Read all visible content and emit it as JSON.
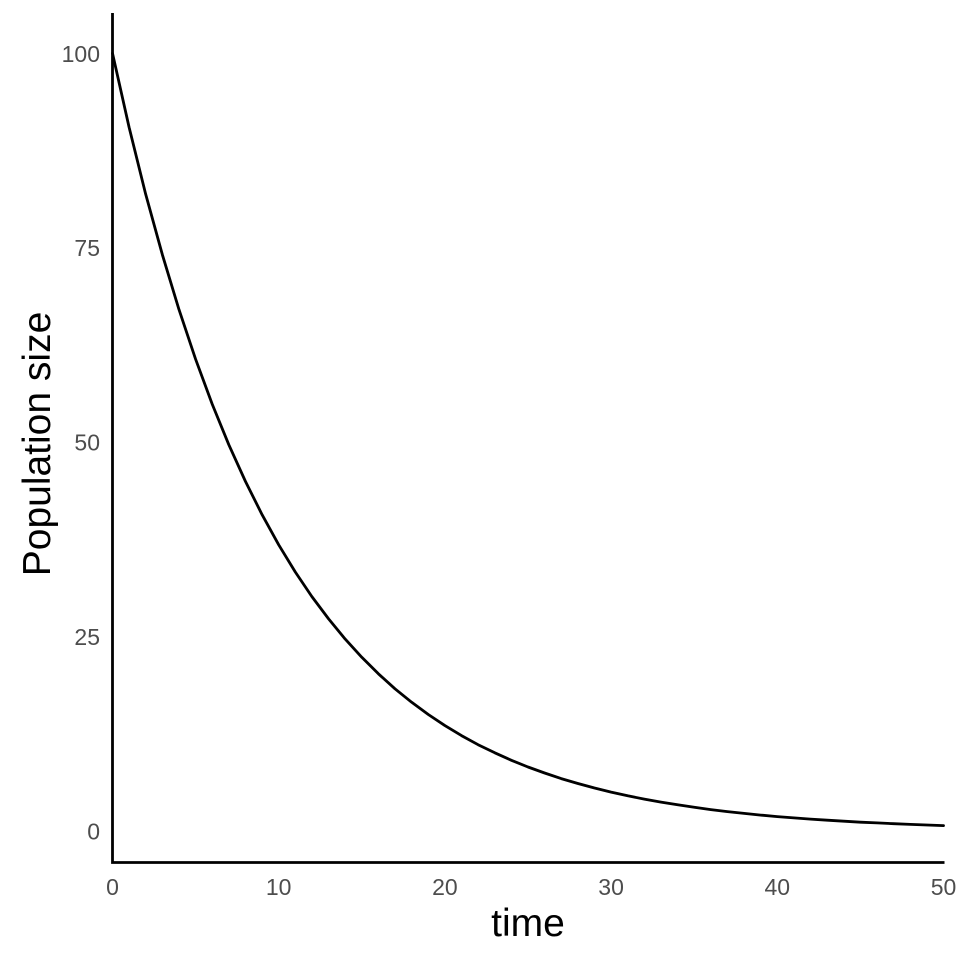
{
  "chart_data": {
    "type": "line",
    "title": "",
    "xlabel": "time",
    "ylabel": "Population size",
    "xlim": [
      0,
      50
    ],
    "ylim": [
      0,
      100
    ],
    "x_ticks": [
      0,
      10,
      20,
      30,
      40,
      50
    ],
    "y_ticks": [
      0,
      25,
      50,
      75,
      100
    ],
    "grid": "off",
    "legend": "none",
    "colors": {
      "curve": "#000000",
      "axis": "#000000",
      "tick_label": "#4D4D4D",
      "axis_title": "#000000",
      "background": "#FFFFFF"
    },
    "series": [
      {
        "name": "population-size",
        "x": [
          0,
          1,
          2,
          3,
          4,
          5,
          6,
          7,
          8,
          9,
          10,
          11,
          12,
          13,
          14,
          15,
          16,
          17,
          18,
          19,
          20,
          21,
          22,
          23,
          24,
          25,
          26,
          27,
          28,
          29,
          30,
          31,
          32,
          33,
          34,
          35,
          36,
          37,
          38,
          39,
          40,
          41,
          42,
          43,
          44,
          45,
          46,
          47,
          48,
          49,
          50
        ],
        "y": [
          100,
          90.48,
          81.87,
          74.08,
          67.03,
          60.65,
          54.88,
          49.66,
          44.93,
          40.66,
          36.79,
          33.29,
          30.12,
          27.25,
          24.66,
          22.31,
          20.19,
          18.27,
          16.53,
          14.96,
          13.53,
          12.25,
          11.08,
          10.03,
          9.07,
          8.21,
          7.43,
          6.72,
          6.08,
          5.5,
          4.98,
          4.5,
          4.08,
          3.69,
          3.34,
          3.02,
          2.73,
          2.47,
          2.24,
          2.02,
          1.83,
          1.66,
          1.5,
          1.36,
          1.23,
          1.11,
          1.01,
          0.91,
          0.82,
          0.74,
          0.67
        ]
      }
    ]
  }
}
